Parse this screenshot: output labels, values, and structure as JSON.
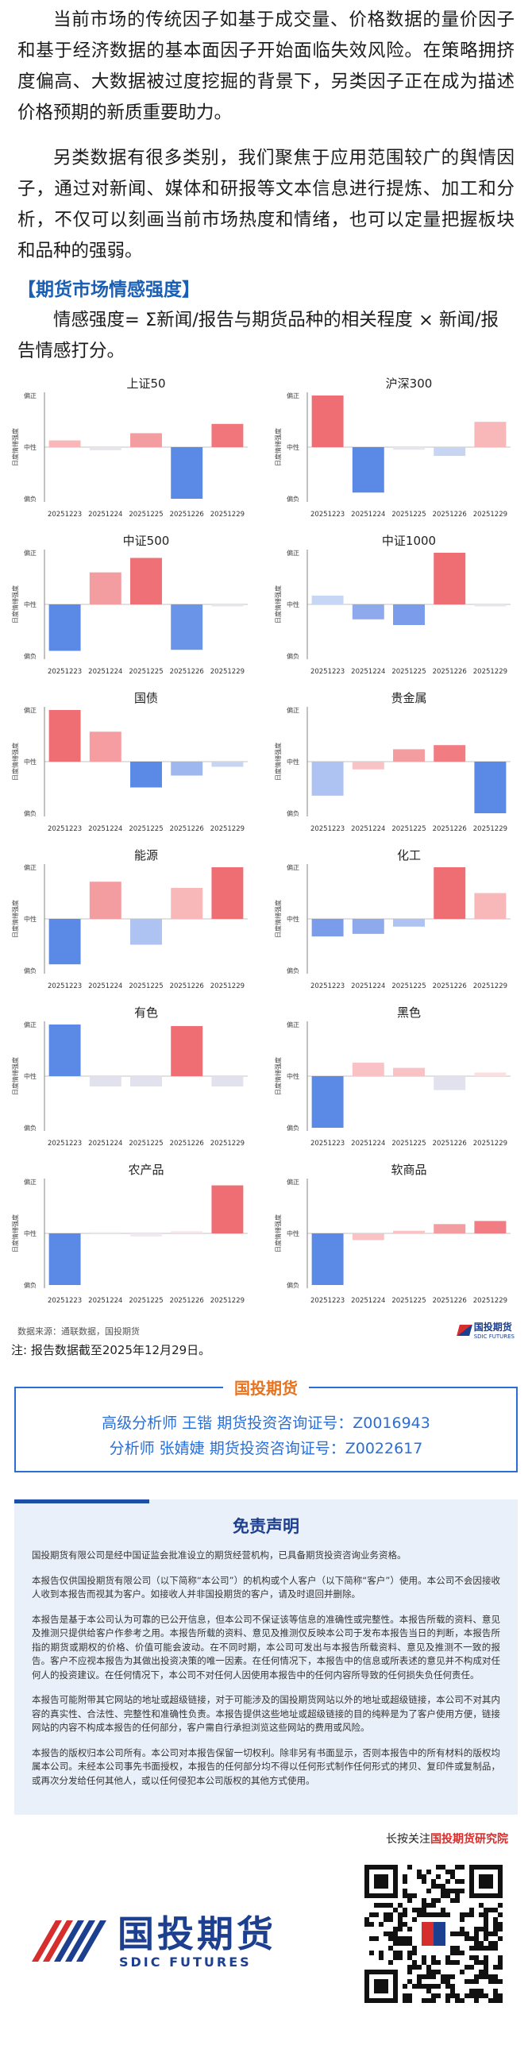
{
  "intro": {
    "para1": "当前市场的传统因子如基于成交量、价格数据的量价因子和基于经济数据的基本面因子开始面临失效风险。在策略拥挤度偏高、大数据被过度挖掘的背景下，另类因子正在成为描述价格预期的新质重要助力。",
    "para2": "另类数据有很多类别，我们聚焦于应用范围较广的舆情因子，通过对新闻、媒体和研报等文本信息进行提炼、加工和分析，不仅可以刻画当前市场热度和情绪，也可以定量把握板块和品种的强弱。",
    "section_title": "【期货市场情感强度】",
    "formula": "情感强度= Σ新闻/报告与期货品种的相关程度 × 新闻/报告情感打分。"
  },
  "chart_common": {
    "ylabel": "日度情绪强度",
    "ytick_top": "偏正",
    "ytick_mid": "中性",
    "ytick_bottom": "偏负",
    "categories": [
      "20251223",
      "20251224",
      "20251225",
      "20251226",
      "20251229"
    ]
  },
  "chart_data": [
    {
      "type": "bar",
      "title": "上证50",
      "ylabel": "日度情绪强度",
      "categories": [
        "20251223",
        "20251224",
        "20251225",
        "20251226",
        "20251229"
      ],
      "values": [
        0.13,
        -0.06,
        0.27,
        -1.0,
        0.45
      ],
      "ylim": [
        -1,
        1
      ],
      "colors": [
        "#f9b7b9",
        "#e9e4ec",
        "#f49da1",
        "#5b8ae6",
        "#f0767b"
      ]
    },
    {
      "type": "bar",
      "title": "沪深300",
      "ylabel": "日度情绪强度",
      "categories": [
        "20251223",
        "20251224",
        "20251225",
        "20251226",
        "20251229"
      ],
      "values": [
        1.0,
        -0.88,
        -0.05,
        -0.17,
        0.49
      ],
      "ylim": [
        -1,
        1
      ],
      "colors": [
        "#ee6e73",
        "#5b8ae6",
        "#e6e6f0",
        "#c7d4f2",
        "#f8b7b9"
      ]
    },
    {
      "type": "bar",
      "title": "中证500",
      "ylabel": "日度情绪强度",
      "categories": [
        "20251223",
        "20251224",
        "20251225",
        "20251226",
        "20251229"
      ],
      "values": [
        -0.9,
        0.62,
        0.9,
        -0.88,
        -0.04
      ],
      "ylim": [
        -1,
        1
      ],
      "colors": [
        "#5b8ae6",
        "#f49da1",
        "#ef7076",
        "#6a94e8",
        "#e6e6f0"
      ]
    },
    {
      "type": "bar",
      "title": "中证1000",
      "ylabel": "日度情绪强度",
      "categories": [
        "20251223",
        "20251224",
        "20251225",
        "20251226",
        "20251229"
      ],
      "values": [
        0.17,
        -0.29,
        -0.4,
        1.0,
        -0.04
      ],
      "ylim": [
        -1,
        1
      ],
      "colors": [
        "#c7d6f5",
        "#8eaaed",
        "#7a9ceb",
        "#ee6e73",
        "#e6e6f0"
      ]
    },
    {
      "type": "bar",
      "title": "国债",
      "ylabel": "日度情绪强度",
      "categories": [
        "20251223",
        "20251224",
        "20251225",
        "20251226",
        "20251229"
      ],
      "values": [
        1.0,
        0.58,
        -0.5,
        -0.27,
        -0.1
      ],
      "ylim": [
        -1,
        1
      ],
      "colors": [
        "#ee6e73",
        "#f59da1",
        "#5b8ae6",
        "#9fb7ef",
        "#c7d4f2"
      ]
    },
    {
      "type": "bar",
      "title": "贵金属",
      "ylabel": "日度情绪强度",
      "categories": [
        "20251223",
        "20251224",
        "20251225",
        "20251226",
        "20251229"
      ],
      "values": [
        -0.66,
        -0.15,
        0.24,
        0.32,
        -1.0
      ],
      "ylim": [
        -1,
        1
      ],
      "colors": [
        "#aec3f2",
        "#f9c3c5",
        "#f49da1",
        "#f17c81",
        "#5b8ae6"
      ]
    },
    {
      "type": "bar",
      "title": "能源",
      "ylabel": "日度情绪强度",
      "categories": [
        "20251223",
        "20251224",
        "20251225",
        "20251226",
        "20251229"
      ],
      "values": [
        -0.88,
        0.72,
        -0.5,
        0.6,
        1.0
      ],
      "ylim": [
        -1,
        1
      ],
      "colors": [
        "#5b8ae6",
        "#f49da1",
        "#aec3f2",
        "#f8b7b9",
        "#ee6e73"
      ]
    },
    {
      "type": "bar",
      "title": "化工",
      "ylabel": "日度情绪强度",
      "categories": [
        "20251223",
        "20251224",
        "20251225",
        "20251226",
        "20251229"
      ],
      "values": [
        -0.34,
        -0.29,
        -0.15,
        1.0,
        0.5
      ],
      "ylim": [
        -1,
        1
      ],
      "colors": [
        "#7a9ceb",
        "#8eaaed",
        "#aec3f2",
        "#ee6e73",
        "#f8b7b9"
      ]
    },
    {
      "type": "bar",
      "title": "有色",
      "ylabel": "日度情绪强度",
      "categories": [
        "20251223",
        "20251224",
        "20251225",
        "20251226",
        "20251229"
      ],
      "values": [
        1.0,
        -0.2,
        -0.2,
        0.97,
        -0.2
      ],
      "ylim": [
        -1,
        1
      ],
      "colors": [
        "#5b8ae6",
        "#e2e2ef",
        "#e2e2ef",
        "#ee6e73",
        "#e2e2ef"
      ]
    },
    {
      "type": "bar",
      "title": "黑色",
      "ylabel": "日度情绪强度",
      "categories": [
        "20251223",
        "20251224",
        "20251225",
        "20251226",
        "20251229"
      ],
      "values": [
        -1.0,
        0.26,
        0.16,
        -0.27,
        0.07
      ],
      "ylim": [
        -1,
        1
      ],
      "colors": [
        "#5b8ae6",
        "#f9c3c5",
        "#f9c3c5",
        "#e2e2ef",
        "#fbe0e1"
      ]
    },
    {
      "type": "bar",
      "title": "农产品",
      "ylabel": "日度情绪强度",
      "categories": [
        "20251223",
        "20251224",
        "20251225",
        "20251226",
        "20251229"
      ],
      "values": [
        -1.0,
        0.02,
        -0.06,
        0.04,
        0.93
      ],
      "ylim": [
        -1,
        1
      ],
      "colors": [
        "#5b8ae6",
        "#eeeaf0",
        "#eeeaf0",
        "#f6e4e6",
        "#ee6e73"
      ]
    },
    {
      "type": "bar",
      "title": "软商品",
      "ylabel": "日度情绪强度",
      "categories": [
        "20251223",
        "20251224",
        "20251225",
        "20251226",
        "20251229"
      ],
      "values": [
        -1.0,
        -0.13,
        0.05,
        0.18,
        0.24
      ],
      "ylim": [
        -1,
        1
      ],
      "colors": [
        "#5b8ae6",
        "#f9c3c5",
        "#f9c3c5",
        "#f49da1",
        "#f17c81"
      ]
    }
  ],
  "chart_source": "数据来源：通联数据，国投期货",
  "chart_logo_cn": "国投期货",
  "chart_logo_en": "SDIC FUTURES",
  "note": "注: 报告数据截至2025年12月29日。",
  "analyst": {
    "tag": "国投期货",
    "line1": "高级分析师  王锴  期货投资咨询证号：Z0016943",
    "line2": "分析师  张婧婕  期货投资咨询证号：Z0022617"
  },
  "disclaimer": {
    "title": "免责声明",
    "p1": "国投期货有限公司是经中国证监会批准设立的期货经营机构，已具备期货投资咨询业务资格。",
    "p2": "本报告仅供国投期货有限公司（以下简称“本公司”）的机构或个人客户（以下简称“客户”）使用。本公司不会因接收人收到本报告而视其为客户。如接收人并非国投期货的客户，请及时退回并删除。",
    "p3": "本报告是基于本公司认为可靠的已公开信息，但本公司不保证该等信息的准确性或完整性。本报告所载的资料、意见及推测只提供给客户作参考之用。本报告所载的资料、意见及推测仅反映本公司于发布本报告当日的判断，本报告所指的期货或期权的价格、价值可能会波动。在不同时期，本公司可发出与本报告所载资料、意见及推测不一致的报告。客户不应视本报告为其做出投资决策的唯一因素。在任何情况下，本报告中的信息或所表述的意见并不构成对任何人的投资建议。在任何情况下，本公司不对任何人因使用本报告中的任何内容所导致的任何损失负任何责任。",
    "p4": "本报告可能附带其它网站的地址或超级链接，对于可能涉及的国投期货网站以外的地址或超级链接，本公司不对其内容的真实性、合法性、完整性和准确性负责。本报告提供这些地址或超级链接的目的纯粹是为了客户使用方便，链接网站的内容不构成本报告的任何部分，客户需自行承担浏览这些网站的费用或风险。",
    "p5": "本报告的版权归本公司所有。本公司对本报告保留一切权利。除非另有书面显示，否则本报告中的所有材料的版权均属本公司。未经本公司事先书面授权，本报告的任何部分均不得以任何形式制作任何形式的拷贝、复印件或复制品，或再次分发给任何其他人，或以任何侵犯本公司版权的其他方式使用。"
  },
  "footer": {
    "follow_prefix": "长按关注",
    "follow_brand": "国投期货研究院",
    "logo_cn": "国投期货",
    "logo_en": "SDIC FUTURES"
  }
}
